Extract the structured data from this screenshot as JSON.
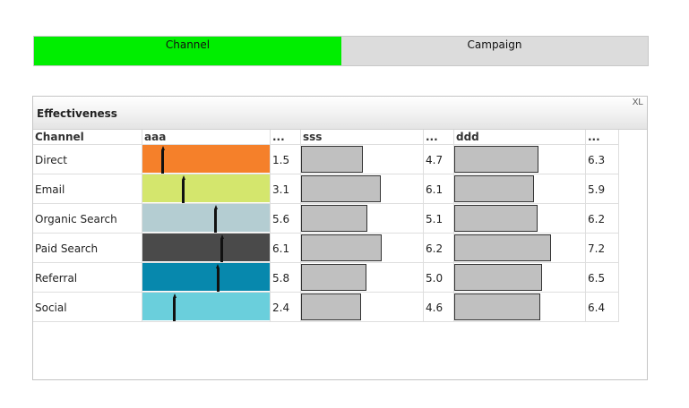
{
  "tabs": [
    {
      "label": "Channel",
      "active": true,
      "color": "#00ee00"
    },
    {
      "label": "Campaign",
      "active": false,
      "color": "#dcdcdc"
    }
  ],
  "panel": {
    "title": "Effectiveness",
    "xl_label": "XL"
  },
  "table": {
    "headers": [
      "Channel",
      "aaa",
      "...",
      "sss",
      "...",
      "ddd",
      "..."
    ],
    "rows": [
      {
        "channel": "Direct",
        "color": "#f5802a",
        "aaa": "1.5",
        "sss": "4.7",
        "ddd": "6.3"
      },
      {
        "channel": "Email",
        "color": "#d4e66d",
        "aaa": "3.1",
        "sss": "6.1",
        "ddd": "5.9"
      },
      {
        "channel": "Organic Search",
        "color": "#b4cdd2",
        "aaa": "5.6",
        "sss": "5.1",
        "ddd": "6.2"
      },
      {
        "channel": "Paid Search",
        "color": "#4a4a4a",
        "aaa": "6.1",
        "sss": "6.2",
        "ddd": "7.2"
      },
      {
        "channel": "Referral",
        "color": "#0788ad",
        "aaa": "5.8",
        "sss": "5.0",
        "ddd": "6.5"
      },
      {
        "channel": "Social",
        "color": "#6acfdc",
        "aaa": "2.4",
        "sss": "4.6",
        "ddd": "6.4"
      }
    ],
    "scales": {
      "aaa_max": 10,
      "sss_max": 9.4,
      "ddd_max": 9.8
    }
  },
  "icons": {
    "marker": "needle-marker-icon"
  }
}
